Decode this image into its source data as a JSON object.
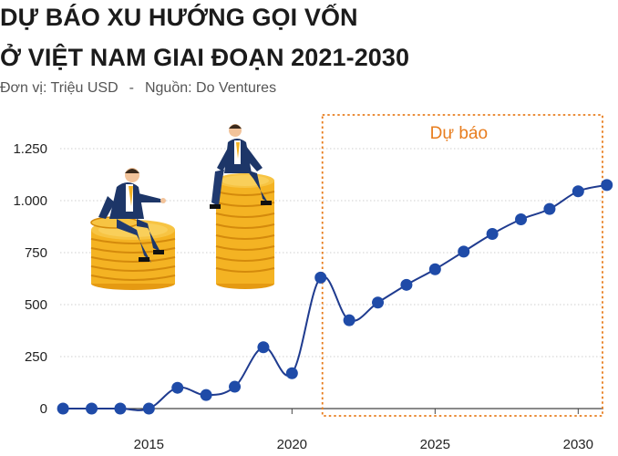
{
  "title_lines": [
    "DỰ BÁO XU HƯỚNG GỌI VỐN",
    "Ở VIỆT NAM GIAI ĐOẠN 2021-2030"
  ],
  "subtitle": {
    "unit": "Đơn vị: Triệu USD",
    "separator": "-",
    "source": "Nguồn: Do Ventures"
  },
  "chart_data": {
    "type": "line",
    "x": [
      2012,
      2013,
      2014,
      2015,
      2016,
      2017,
      2018,
      2019,
      2020,
      2021,
      2022,
      2023,
      2024,
      2025,
      2026,
      2027,
      2028,
      2029,
      2030,
      2031
    ],
    "series": [
      {
        "values": [
          0,
          0,
          0,
          0,
          100,
          65,
          105,
          295,
          170,
          630,
          425,
          510,
          595,
          670,
          755,
          840,
          910,
          960,
          1045,
          1075
        ]
      }
    ],
    "xlim": [
      2011.9,
      2031.2
    ],
    "ylim": [
      0,
      1250
    ],
    "yticks": [
      0,
      250,
      500,
      750,
      1000,
      1250
    ],
    "ytick_labels": [
      "0",
      "250",
      "500",
      "750",
      "1.000",
      "1.250"
    ],
    "xticks": [
      2015,
      2020,
      2025,
      2030
    ],
    "xtick_labels": [
      "2015",
      "2020",
      "2025",
      "2030"
    ],
    "grid": "horizontal",
    "line_color": "#1f3b8f",
    "marker_color": "#1f4ba8",
    "forecast": {
      "start": 2021,
      "end": 2031,
      "label": "Dự báo",
      "color": "#e87d1e"
    }
  }
}
